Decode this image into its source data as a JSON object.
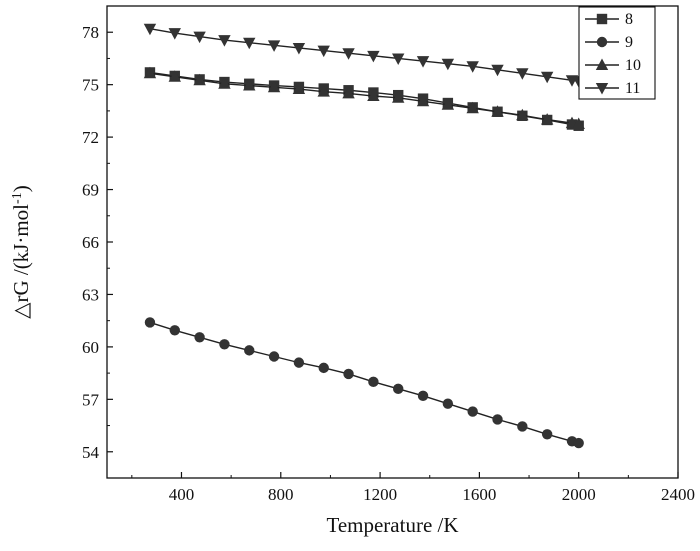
{
  "chart_data": {
    "type": "line",
    "xlabel": "Temperature /K",
    "ylabel_main": "△rG /(kJ·mol",
    "ylabel_sup": "-1",
    "ylabel_end": ")",
    "xlim": [
      100,
      2400
    ],
    "ylim": [
      52.5,
      79.5
    ],
    "xticks": [
      400,
      800,
      1200,
      1600,
      2000,
      2400
    ],
    "yticks": [
      54,
      57,
      60,
      63,
      66,
      69,
      72,
      75,
      78
    ],
    "legend": "top-right",
    "grid": false,
    "x": [
      273,
      373,
      473,
      573,
      673,
      773,
      873,
      973,
      1073,
      1173,
      1273,
      1373,
      1473,
      1573,
      1673,
      1773,
      1873,
      1973,
      2000
    ],
    "series": [
      {
        "name": "8",
        "marker": "square",
        "values": [
          75.7,
          75.5,
          75.3,
          75.15,
          75.05,
          74.95,
          74.87,
          74.78,
          74.68,
          74.55,
          74.4,
          74.2,
          73.95,
          73.7,
          73.45,
          73.22,
          72.98,
          72.72,
          72.65
        ]
      },
      {
        "name": "9",
        "marker": "circle",
        "values": [
          61.4,
          60.95,
          60.55,
          60.15,
          59.8,
          59.45,
          59.1,
          58.8,
          58.45,
          58.0,
          57.6,
          57.2,
          56.75,
          56.3,
          55.85,
          55.45,
          55.0,
          54.6,
          54.5
        ]
      },
      {
        "name": "10",
        "marker": "triangle-up",
        "values": [
          75.65,
          75.45,
          75.25,
          75.05,
          74.95,
          74.85,
          74.75,
          74.6,
          74.5,
          74.35,
          74.25,
          74.05,
          73.85,
          73.65,
          73.45,
          73.25,
          73.0,
          72.8,
          72.75
        ]
      },
      {
        "name": "11",
        "marker": "triangle-down",
        "values": [
          78.2,
          77.95,
          77.75,
          77.55,
          77.4,
          77.25,
          77.1,
          76.95,
          76.8,
          76.65,
          76.5,
          76.35,
          76.2,
          76.05,
          75.85,
          75.65,
          75.45,
          75.25,
          75.2
        ]
      }
    ]
  }
}
